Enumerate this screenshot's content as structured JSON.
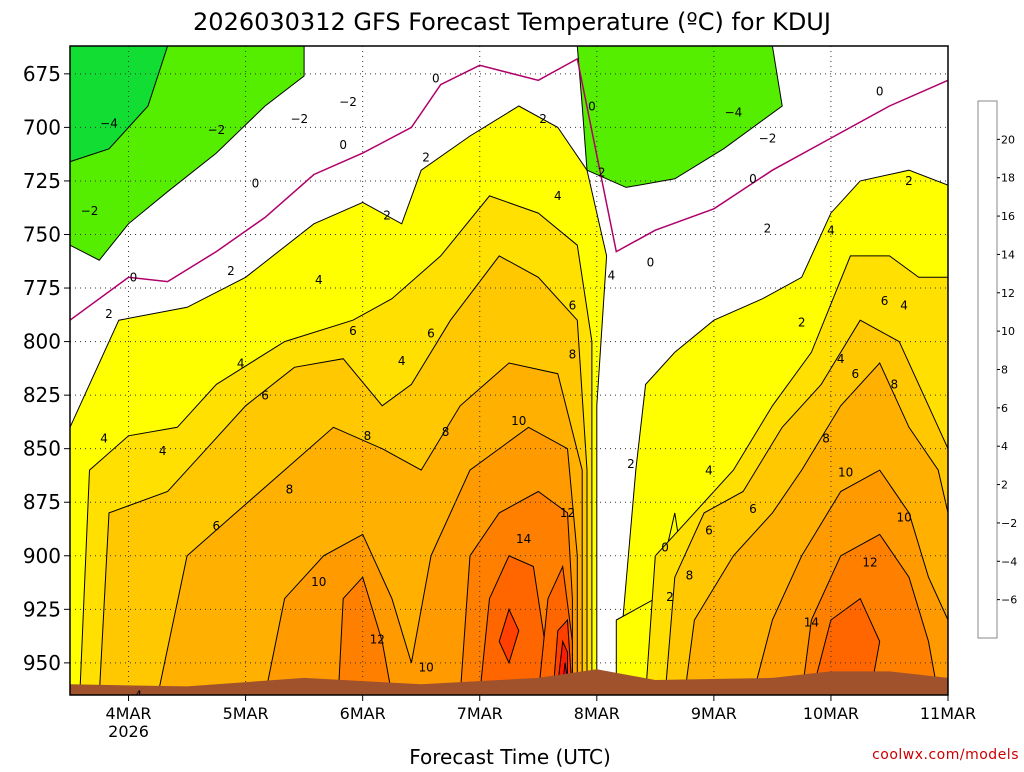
{
  "chart_data": {
    "type": "heatmap",
    "title": "2026030312 GFS Forecast Temperature (ºC) for KDUJ",
    "xlabel": "Forecast Time (UTC)",
    "ylabel": "",
    "watermark": "coolwx.com/models",
    "x_unit": "hours after 2026-03-03 12Z",
    "xlim": [
      0,
      180
    ],
    "ylim": [
      965,
      662
    ],
    "x_ticks": [
      {
        "label": "4MAR",
        "sublabel": "2026",
        "value": 12
      },
      {
        "label": "5MAR",
        "sublabel": "",
        "value": 36
      },
      {
        "label": "6MAR",
        "sublabel": "",
        "value": 60
      },
      {
        "label": "7MAR",
        "sublabel": "",
        "value": 84
      },
      {
        "label": "8MAR",
        "sublabel": "",
        "value": 108
      },
      {
        "label": "9MAR",
        "sublabel": "",
        "value": 132
      },
      {
        "label": "10MAR",
        "sublabel": "",
        "value": 156
      },
      {
        "label": "11MAR",
        "sublabel": "",
        "value": 180
      }
    ],
    "y_ticks": [
      675,
      700,
      725,
      750,
      775,
      800,
      825,
      850,
      875,
      900,
      925,
      950
    ],
    "colorbar": {
      "labels": [
        "20",
        "18",
        "16",
        "14",
        "12",
        "10",
        "8",
        "6",
        "4",
        "2",
        "−2",
        "−4",
        "−6"
      ],
      "bands": [
        {
          "min": 20,
          "max": 22,
          "color": "#ff0044"
        },
        {
          "min": 18,
          "max": 20,
          "color": "#ff1a00"
        },
        {
          "min": 16,
          "max": 18,
          "color": "#ff4000"
        },
        {
          "min": 14,
          "max": 16,
          "color": "#ff6600"
        },
        {
          "min": 12,
          "max": 14,
          "color": "#ff8000"
        },
        {
          "min": 10,
          "max": 12,
          "color": "#ff9a00"
        },
        {
          "min": 8,
          "max": 10,
          "color": "#ffb000"
        },
        {
          "min": 6,
          "max": 8,
          "color": "#ffc800"
        },
        {
          "min": 4,
          "max": 6,
          "color": "#ffe000"
        },
        {
          "min": 2,
          "max": 4,
          "color": "#ffff00"
        },
        {
          "min": -2,
          "max": 2,
          "color": "#ffffff"
        },
        {
          "min": -4,
          "max": -2,
          "color": "#55ee00"
        },
        {
          "min": -6,
          "max": -4,
          "color": "#11dd33"
        },
        {
          "min": -8,
          "max": -6,
          "color": "#00ee77"
        }
      ]
    },
    "surface_pressure": [
      {
        "t": 0,
        "p": 960
      },
      {
        "t": 24,
        "p": 961
      },
      {
        "t": 48,
        "p": 957
      },
      {
        "t": 72,
        "p": 960
      },
      {
        "t": 96,
        "p": 957
      },
      {
        "t": 108,
        "p": 953
      },
      {
        "t": 120,
        "p": 958
      },
      {
        "t": 144,
        "p": 957
      },
      {
        "t": 156,
        "p": 954
      },
      {
        "t": 168,
        "p": 954
      },
      {
        "t": 180,
        "p": 957
      }
    ],
    "zero_isotherm": [
      {
        "t": 0,
        "p": 790
      },
      {
        "t": 12,
        "p": 770
      },
      {
        "t": 20,
        "p": 772
      },
      {
        "t": 30,
        "p": 758
      },
      {
        "t": 40,
        "p": 742
      },
      {
        "t": 50,
        "p": 722
      },
      {
        "t": 60,
        "p": 712
      },
      {
        "t": 70,
        "p": 700
      },
      {
        "t": 76,
        "p": 680
      },
      {
        "t": 84,
        "p": 671
      },
      {
        "t": 96,
        "p": 678
      },
      {
        "t": 104,
        "p": 668
      },
      {
        "t": 112,
        "p": 758
      },
      {
        "t": 120,
        "p": 748
      },
      {
        "t": 132,
        "p": 738
      },
      {
        "t": 144,
        "p": 720
      },
      {
        "t": 156,
        "p": 705
      },
      {
        "t": 168,
        "p": 690
      },
      {
        "t": 180,
        "p": 678
      }
    ],
    "contour_labels": [
      {
        "value": -4,
        "t": 8,
        "p": 700
      },
      {
        "value": -2,
        "t": 30,
        "p": 703
      },
      {
        "value": -2,
        "t": 47,
        "p": 698
      },
      {
        "value": -2,
        "t": 57,
        "p": 690
      },
      {
        "value": 0,
        "t": 75,
        "p": 679
      },
      {
        "value": 0,
        "t": 107,
        "p": 692
      },
      {
        "value": -4,
        "t": 136,
        "p": 695
      },
      {
        "value": -2,
        "t": 143,
        "p": 707
      },
      {
        "value": 0,
        "t": 166,
        "p": 685
      },
      {
        "value": 0,
        "t": 140,
        "p": 726
      },
      {
        "value": -2,
        "t": 4,
        "p": 741
      },
      {
        "value": 0,
        "t": 38,
        "p": 728
      },
      {
        "value": 0,
        "t": 56,
        "p": 710
      },
      {
        "value": 0,
        "t": 13,
        "p": 772
      },
      {
        "value": 0,
        "t": 119,
        "p": 765
      },
      {
        "value": 2,
        "t": 8,
        "p": 789
      },
      {
        "value": 2,
        "t": 33,
        "p": 769
      },
      {
        "value": 2,
        "t": 65,
        "p": 743
      },
      {
        "value": 2,
        "t": 73,
        "p": 716
      },
      {
        "value": 2,
        "t": 97,
        "p": 698
      },
      {
        "value": 2,
        "t": 109,
        "p": 723
      },
      {
        "value": 2,
        "t": 143,
        "p": 749
      },
      {
        "value": 2,
        "t": 150,
        "p": 793
      },
      {
        "value": 2,
        "t": 172,
        "p": 727
      },
      {
        "value": 2,
        "t": 115,
        "p": 859
      },
      {
        "value": 4,
        "t": 7,
        "p": 847
      },
      {
        "value": 4,
        "t": 19,
        "p": 853
      },
      {
        "value": 4,
        "t": 35,
        "p": 812
      },
      {
        "value": 4,
        "t": 51,
        "p": 773
      },
      {
        "value": 4,
        "t": 68,
        "p": 811
      },
      {
        "value": 4,
        "t": 100,
        "p": 734
      },
      {
        "value": 4,
        "t": 111,
        "p": 771
      },
      {
        "value": 4,
        "t": 131,
        "p": 862
      },
      {
        "value": 4,
        "t": 158,
        "p": 810
      },
      {
        "value": 4,
        "t": 156,
        "p": 750
      },
      {
        "value": 4,
        "t": 171,
        "p": 785
      },
      {
        "value": 6,
        "t": 40,
        "p": 827
      },
      {
        "value": 6,
        "t": 58,
        "p": 797
      },
      {
        "value": 6,
        "t": 74,
        "p": 798
      },
      {
        "value": 6,
        "t": 103,
        "p": 785
      },
      {
        "value": 6,
        "t": 30,
        "p": 888
      },
      {
        "value": 6,
        "t": 131,
        "p": 890
      },
      {
        "value": 6,
        "t": 140,
        "p": 880
      },
      {
        "value": 6,
        "t": 161,
        "p": 817
      },
      {
        "value": 6,
        "t": 167,
        "p": 783
      },
      {
        "value": 8,
        "t": 61,
        "p": 846
      },
      {
        "value": 8,
        "t": 77,
        "p": 844
      },
      {
        "value": 8,
        "t": 45,
        "p": 871
      },
      {
        "value": 8,
        "t": 103,
        "p": 808
      },
      {
        "value": 8,
        "t": 127,
        "p": 911
      },
      {
        "value": 8,
        "t": 155,
        "p": 847
      },
      {
        "value": 8,
        "t": 169,
        "p": 822
      },
      {
        "value": 10,
        "t": 51,
        "p": 914
      },
      {
        "value": 10,
        "t": 92,
        "p": 839
      },
      {
        "value": 10,
        "t": 73,
        "p": 954
      },
      {
        "value": 10,
        "t": 159,
        "p": 863
      },
      {
        "value": 10,
        "t": 171,
        "p": 884
      },
      {
        "value": 12,
        "t": 63,
        "p": 941
      },
      {
        "value": 12,
        "t": 102,
        "p": 882
      },
      {
        "value": 12,
        "t": 164,
        "p": 905
      },
      {
        "value": 14,
        "t": 93,
        "p": 894
      },
      {
        "value": 14,
        "t": 152,
        "p": 933
      },
      {
        "value": 0,
        "t": 122,
        "p": 898
      },
      {
        "value": 2,
        "t": 123,
        "p": 921
      },
      {
        "value": 4,
        "t": 14,
        "p": 967
      }
    ]
  }
}
